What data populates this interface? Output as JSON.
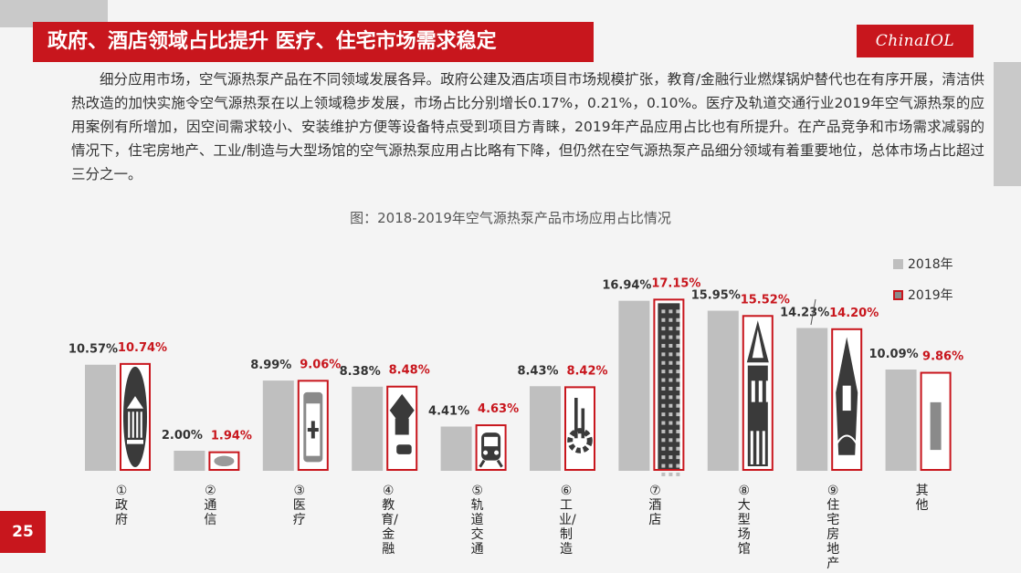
{
  "header": {
    "title": "政府、酒店领域占比提升 医疗、住宅市场需求稳定",
    "logo_text": "ChinaIOL"
  },
  "body_text": "细分应用市场，空气源热泵产品在不同领域发展各异。政府公建及酒店项目市场规模扩张，教育/金融行业燃煤锅炉替代也在有序开展，清洁供热改造的加快实施令空气源热泵在以上领域稳步发展，市场占比分别增长0.17%，0.21%，0.10%。医疗及轨道交通行业2019年空气源热泵的应用案例有所增加，因空间需求较小、安装维护方便等设备特点受到项目方青睐，2019年产品应用占比也有所提升。在产品竞争和市场需求减弱的情况下，住宅房地产、工业/制造与大型场馆的空气源热泵应用占比略有下降，但仍然在空气源热泵产品细分领域有着重要地位，总体市场占比超过三分之一。",
  "figure_caption": "图：2018-2019年空气源热泵产品市场应用占比情况",
  "page_number": "25",
  "colors": {
    "accent": "#c8161d",
    "bar_2018": "#bfbfbf",
    "icon_dark": "#3a3a3a"
  },
  "chart_data": {
    "type": "bar",
    "title": "图：2018-2019年空气源热泵产品市场应用占比情况",
    "categories": [
      "①政府",
      "②通信",
      "③医疗",
      "④教育/金融",
      "⑤轨道交通",
      "⑥工业/制造",
      "⑦酒店",
      "⑧大型场馆",
      "⑨住宅房地产",
      "其他"
    ],
    "series": [
      {
        "name": "2018年",
        "values": [
          10.57,
          2.0,
          8.99,
          8.38,
          4.41,
          8.43,
          16.94,
          15.95,
          14.23,
          10.09
        ],
        "labels": [
          "10.57%",
          "2.00%",
          "8.99%",
          "8.38%",
          "4.41%",
          "8.43%",
          "16.94%",
          "15.95%",
          "14.23%",
          "10.09%"
        ]
      },
      {
        "name": "2019年",
        "values": [
          10.74,
          1.94,
          9.06,
          8.48,
          4.63,
          8.42,
          17.15,
          15.52,
          14.2,
          9.86
        ],
        "labels": [
          "10.74%",
          "1.94%",
          "9.06%",
          "8.48%",
          "4.63%",
          "8.42%",
          "17.15%",
          "15.52%",
          "14.20%",
          "9.86%"
        ]
      }
    ],
    "icons": [
      "government-building-icon",
      "network-device-icon",
      "hospital-bottle-icon",
      "graduation-cap-icon",
      "train-icon",
      "factory-gear-icon",
      "hotel-tower-icon",
      "stadium-icon",
      "house-icon",
      "generic-icon"
    ],
    "legend_position": "top-right",
    "grid": false,
    "ylim": [
      0,
      17.15
    ]
  }
}
